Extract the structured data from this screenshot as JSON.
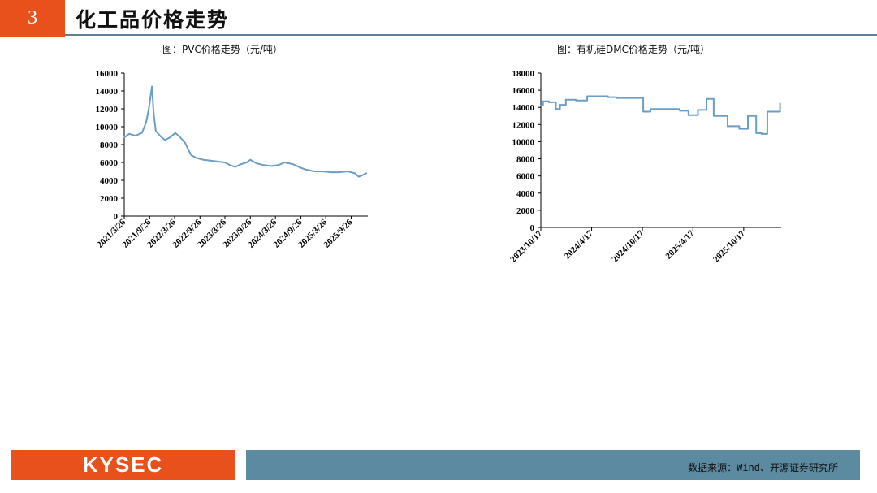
{
  "header": {
    "number": "3",
    "title": "化工品价格走势"
  },
  "footer": {
    "logo": "KYSEC",
    "source": "数据来源：Wind、开源证券研究所"
  },
  "colors": {
    "accent": "#e8501c",
    "rule": "#5b7f95",
    "series": "#6a9ec6",
    "footer_bar": "#5c8aa0"
  },
  "chart_data": [
    {
      "type": "line",
      "title": "图：PVC价格走势（元/吨）",
      "ylim": [
        0,
        16000
      ],
      "yticks": [
        0,
        2000,
        4000,
        6000,
        8000,
        10000,
        12000,
        14000,
        16000
      ],
      "xtick_labels": [
        "2021/3/26",
        "2021/9/26",
        "2022/3/26",
        "2022/9/26",
        "2023/3/26",
        "2023/9/26",
        "2024/3/26",
        "2024/9/26",
        "2025/3/26",
        "2025/9/26"
      ],
      "x": [
        "2021-03-26",
        "2021-05-01",
        "2021-06-15",
        "2021-08-01",
        "2021-09-01",
        "2021-09-20",
        "2021-10-13",
        "2021-10-25",
        "2021-11-10",
        "2021-12-10",
        "2022-01-15",
        "2022-02-20",
        "2022-04-01",
        "2022-05-01",
        "2022-06-10",
        "2022-07-01",
        "2022-07-25",
        "2022-09-01",
        "2022-10-20",
        "2022-12-10",
        "2023-02-01",
        "2023-03-26",
        "2023-05-01",
        "2023-06-10",
        "2023-07-20",
        "2023-09-01",
        "2023-09-26",
        "2023-11-10",
        "2024-01-01",
        "2024-03-01",
        "2024-04-15",
        "2024-06-01",
        "2024-08-01",
        "2024-09-26",
        "2024-11-01",
        "2025-01-01",
        "2025-03-01",
        "2025-05-01",
        "2025-07-01",
        "2025-09-01",
        "2025-10-20",
        "2025-11-20",
        "2025-12-20",
        "2026-01-15"
      ],
      "series": [
        {
          "values": [
            8800,
            9200,
            9000,
            9300,
            10500,
            12000,
            14500,
            11500,
            9500,
            9000,
            8500,
            8800,
            9300,
            8900,
            8200,
            7500,
            6800,
            6500,
            6300,
            6200,
            6100,
            6000,
            5700,
            5500,
            5800,
            6000,
            6300,
            5900,
            5700,
            5600,
            5700,
            6000,
            5800,
            5400,
            5200,
            5000,
            5000,
            4900,
            4900,
            5000,
            4800,
            4400,
            4600,
            4800
          ]
        }
      ]
    },
    {
      "type": "line",
      "title": "图：有机硅DMC价格走势（元/吨）",
      "ylim": [
        0,
        18000
      ],
      "yticks": [
        0,
        2000,
        4000,
        6000,
        8000,
        10000,
        12000,
        14000,
        16000,
        18000
      ],
      "xtick_labels": [
        "2023/10/17",
        "2024/4/17",
        "2024/10/17",
        "2025/4/17",
        "2025/10/17"
      ],
      "x": [
        "2023-10-17",
        "2023-10-25",
        "2023-11-15",
        "2023-12-10",
        "2023-12-25",
        "2024-01-15",
        "2024-02-20",
        "2024-04-01",
        "2024-05-10",
        "2024-06-15",
        "2024-07-15",
        "2024-08-20",
        "2024-09-20",
        "2024-10-20",
        "2024-11-15",
        "2024-12-10",
        "2025-01-10",
        "2025-02-10",
        "2025-03-01",
        "2025-04-01",
        "2025-05-05",
        "2025-06-05",
        "2025-07-01",
        "2025-07-20",
        "2025-08-20",
        "2025-09-01",
        "2025-10-01",
        "2025-11-01",
        "2025-12-01",
        "2025-12-20",
        "2026-01-10",
        "2026-02-25"
      ],
      "series": [
        {
          "values": [
            14200,
            14700,
            14600,
            13800,
            14300,
            14900,
            14800,
            15300,
            15300,
            15200,
            15100,
            15100,
            15100,
            13500,
            13800,
            13800,
            13800,
            13800,
            13600,
            13100,
            13700,
            15000,
            13000,
            13000,
            11800,
            11800,
            11500,
            13000,
            11000,
            10900,
            13500,
            14500
          ]
        }
      ]
    }
  ]
}
